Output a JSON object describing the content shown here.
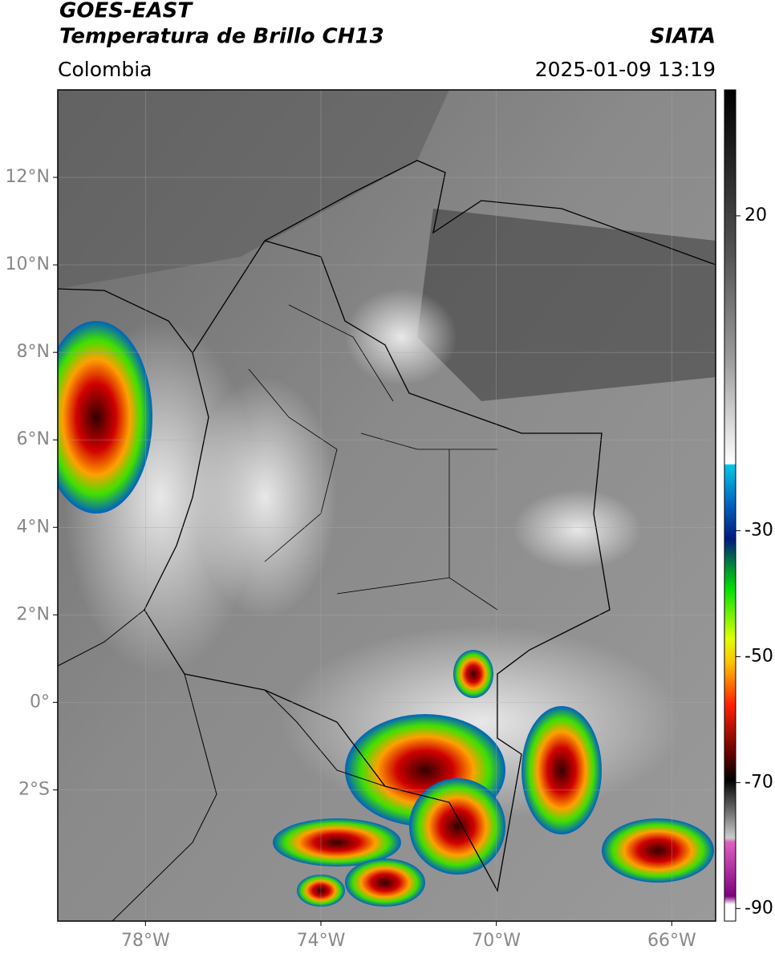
{
  "header": {
    "title": "GOES-EAST",
    "subtitle": "Temperatura de Brillo CH13",
    "source": "SIATA",
    "region": "Colombia",
    "timestamp": "2025-01-09 13:19"
  },
  "map": {
    "lon_range": [
      -80,
      -65
    ],
    "lat_range": [
      -5,
      14
    ],
    "lat_ticks": [
      {
        "value": 12,
        "label": "12°N"
      },
      {
        "value": 10,
        "label": "10°N"
      },
      {
        "value": 8,
        "label": "8°N"
      },
      {
        "value": 6,
        "label": "6°N"
      },
      {
        "value": 4,
        "label": "4°N"
      },
      {
        "value": 2,
        "label": "2°N"
      },
      {
        "value": 0,
        "label": "0°"
      },
      {
        "value": -2,
        "label": "2°S"
      }
    ],
    "lon_ticks": [
      {
        "value": -78,
        "label": "78°W"
      },
      {
        "value": -74,
        "label": "74°W"
      },
      {
        "value": -70,
        "label": "70°W"
      },
      {
        "value": -66,
        "label": "66°W"
      }
    ]
  },
  "colorbar": {
    "range": [
      -92,
      40
    ],
    "ticks": [
      20,
      -30,
      -50,
      -70,
      -90
    ]
  }
}
